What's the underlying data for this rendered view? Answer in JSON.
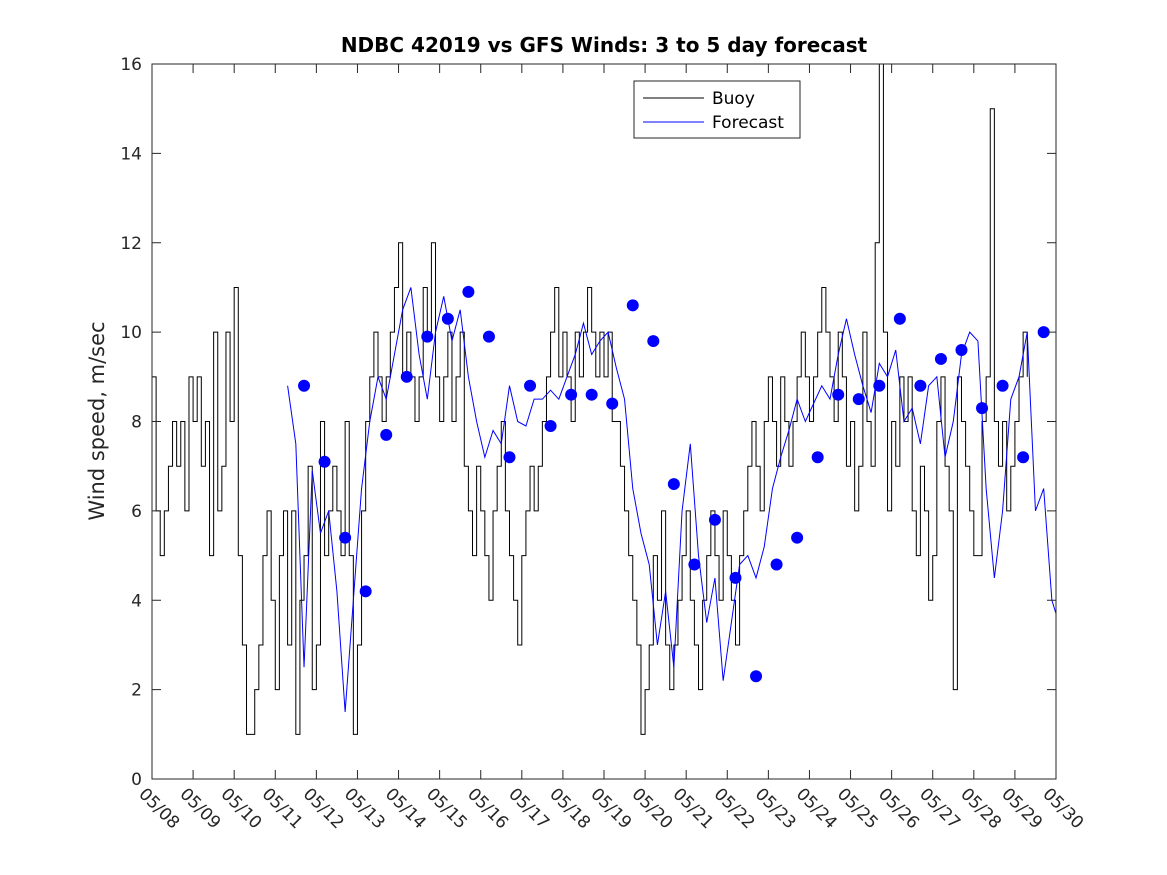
{
  "chart_data": {
    "type": "line",
    "title": "NDBC 42019 vs GFS Winds: 3 to 5 day forecast",
    "xlabel": "",
    "ylabel": "Wind speed, m/sec",
    "xlim": [
      "05/08",
      "05/30"
    ],
    "ylim": [
      0,
      16
    ],
    "y_ticks": [
      0,
      2,
      4,
      6,
      8,
      10,
      12,
      14,
      16
    ],
    "x_ticks": [
      "05/08",
      "05/09",
      "05/10",
      "05/11",
      "05/12",
      "05/13",
      "05/14",
      "05/15",
      "05/16",
      "05/17",
      "05/18",
      "05/19",
      "05/20",
      "05/21",
      "05/22",
      "05/23",
      "05/24",
      "05/25",
      "05/26",
      "05/27",
      "05/28",
      "05/29",
      "05/30"
    ],
    "grid": false,
    "legend": {
      "placement": "top-center",
      "entries": [
        "Buoy",
        "Forecast"
      ]
    },
    "colors": {
      "Buoy": "#000000",
      "Forecast": "#0000ff",
      "markers": "#0000ff"
    },
    "series": [
      {
        "name": "Buoy",
        "x_day_fraction": [
          0.0,
          0.1,
          0.2,
          0.3,
          0.4,
          0.5,
          0.6,
          0.7,
          0.8,
          0.9,
          1.0,
          1.1,
          1.2,
          1.3,
          1.4,
          1.5,
          1.6,
          1.7,
          1.8,
          1.9,
          2.0,
          2.1,
          2.2,
          2.3,
          2.4,
          2.5,
          2.6,
          2.7,
          2.8,
          2.9,
          3.0,
          3.1,
          3.2,
          3.3,
          3.4,
          3.5,
          3.6,
          3.7,
          3.8,
          3.9,
          4.0,
          4.1,
          4.2,
          4.3,
          4.4,
          4.5,
          4.6,
          4.7,
          4.8,
          4.9,
          5.0,
          5.1,
          5.2,
          5.3,
          5.4,
          5.5,
          5.6,
          5.7,
          5.8,
          5.9,
          6.0,
          6.1,
          6.2,
          6.3,
          6.4,
          6.5,
          6.6,
          6.7,
          6.8,
          6.9,
          7.0,
          7.1,
          7.2,
          7.3,
          7.4,
          7.5,
          7.6,
          7.7,
          7.8,
          7.9,
          8.0,
          8.1,
          8.2,
          8.3,
          8.4,
          8.5,
          8.6,
          8.7,
          8.8,
          8.9,
          9.0,
          9.1,
          9.2,
          9.3,
          9.4,
          9.5,
          9.6,
          9.7,
          9.8,
          9.9,
          10.0,
          10.1,
          10.2,
          10.3,
          10.4,
          10.5,
          10.6,
          10.7,
          10.8,
          10.9,
          11.0,
          11.1,
          11.2,
          11.3,
          11.4,
          11.5,
          11.6,
          11.7,
          11.8,
          11.9,
          12.0,
          12.1,
          12.2,
          12.3,
          12.4,
          12.5,
          12.6,
          12.7,
          12.8,
          12.9,
          13.0,
          13.1,
          13.2,
          13.3,
          13.4,
          13.5,
          13.6,
          13.7,
          13.8,
          13.9,
          14.0,
          14.1,
          14.2,
          14.3,
          14.4,
          14.5,
          14.6,
          14.7,
          14.8,
          14.9,
          15.0,
          15.1,
          15.2,
          15.3,
          15.4,
          15.5,
          15.6,
          15.7,
          15.8,
          15.9,
          16.0,
          16.1,
          16.2,
          16.3,
          16.4,
          16.5,
          16.6,
          16.7,
          16.8,
          16.9,
          17.0,
          17.1,
          17.2,
          17.3,
          17.4,
          17.5,
          17.6,
          17.7,
          17.8,
          17.9,
          18.0,
          18.1,
          18.2,
          18.3,
          18.4,
          18.5,
          18.6,
          18.7,
          18.8,
          18.9,
          19.0,
          19.1,
          19.2,
          19.3,
          19.4,
          19.5,
          19.6,
          19.7,
          19.8,
          19.9,
          20.0,
          20.1,
          20.2,
          20.3,
          20.4,
          20.5,
          20.6,
          20.7,
          20.8,
          20.9,
          21.0,
          21.1,
          21.2,
          21.3
        ],
        "values": [
          9,
          6,
          5,
          6,
          7,
          8,
          7,
          8,
          6,
          9,
          8,
          9,
          7,
          8,
          5,
          10,
          6,
          7,
          10,
          8,
          11,
          5,
          3,
          1,
          1,
          2,
          3,
          5,
          6,
          4,
          2,
          5,
          6,
          3,
          6,
          1,
          4,
          5,
          7,
          2,
          3,
          8,
          5,
          6,
          7,
          6,
          5,
          8,
          5,
          1,
          3,
          6,
          8,
          9,
          10,
          9,
          8,
          9,
          10,
          11,
          12,
          9,
          10,
          9,
          8,
          9,
          11,
          10,
          12,
          9,
          8,
          9,
          10,
          8,
          9,
          10,
          7,
          6,
          5,
          7,
          6,
          5,
          4,
          6,
          7,
          8,
          6,
          5,
          4,
          3,
          5,
          6,
          7,
          6,
          7,
          8,
          9,
          10,
          11,
          9,
          10,
          9,
          8,
          10,
          9,
          10,
          11,
          10,
          9,
          10,
          9,
          10,
          8,
          8,
          7,
          6,
          5,
          4,
          3,
          1,
          2,
          3,
          5,
          4,
          6,
          3,
          2,
          3,
          4,
          5,
          6,
          4,
          3,
          2,
          4,
          5,
          6,
          5,
          4,
          6,
          5,
          4,
          3,
          5,
          6,
          7,
          8,
          7,
          6,
          8,
          9,
          8,
          7,
          9,
          8,
          7,
          8,
          9,
          10,
          9,
          8,
          9,
          10,
          11,
          10,
          9,
          8,
          10,
          9,
          7,
          8,
          6,
          7,
          10,
          8,
          7,
          12,
          16,
          10,
          6,
          8,
          7,
          9,
          8,
          9,
          6,
          5,
          7,
          6,
          4,
          5,
          8,
          9,
          7,
          6,
          2,
          9,
          8,
          7,
          6,
          5,
          5,
          8,
          9,
          15,
          8,
          7,
          8,
          6,
          7,
          8,
          9,
          10,
          9
        ]
      },
      {
        "name": "Forecast",
        "x_day_fraction": [
          3.3,
          3.5,
          3.7,
          3.9,
          4.1,
          4.3,
          4.5,
          4.7,
          4.9,
          5.1,
          5.3,
          5.5,
          5.7,
          5.9,
          6.1,
          6.3,
          6.5,
          6.7,
          6.9,
          7.1,
          7.3,
          7.5,
          7.7,
          7.9,
          8.1,
          8.3,
          8.5,
          8.7,
          8.9,
          9.1,
          9.3,
          9.5,
          9.7,
          9.9,
          10.1,
          10.3,
          10.5,
          10.7,
          10.9,
          11.1,
          11.3,
          11.5,
          11.7,
          11.9,
          12.1,
          12.3,
          12.5,
          12.7,
          12.9,
          13.1,
          13.3,
          13.5,
          13.7,
          13.9,
          14.1,
          14.3,
          14.5,
          14.7,
          14.9,
          15.1,
          15.3,
          15.5,
          15.7,
          15.9,
          16.1,
          16.3,
          16.5,
          16.7,
          16.9,
          17.1,
          17.3,
          17.5,
          17.7,
          17.9,
          18.1,
          18.3,
          18.5,
          18.7,
          18.9,
          19.1,
          19.3,
          19.5,
          19.7,
          19.9,
          20.1,
          20.3,
          20.5,
          20.7,
          20.9,
          21.1,
          21.3,
          21.5,
          21.7,
          21.9,
          22.0
        ],
        "values": [
          8.8,
          7.5,
          2.5,
          6.9,
          5.5,
          6.0,
          4.2,
          1.5,
          4.0,
          6.5,
          8.0,
          9.0,
          8.5,
          9.5,
          10.5,
          11.0,
          9.5,
          8.5,
          10.0,
          10.8,
          9.8,
          10.5,
          9.0,
          8.0,
          7.2,
          7.8,
          7.5,
          8.8,
          8.0,
          7.9,
          8.5,
          8.5,
          8.7,
          8.5,
          9.0,
          9.5,
          10.2,
          9.5,
          9.8,
          10.0,
          9.2,
          8.5,
          6.5,
          5.5,
          4.8,
          3.0,
          4.2,
          2.5,
          6.0,
          7.5,
          5.0,
          3.5,
          4.5,
          2.2,
          3.5,
          4.8,
          5.0,
          4.5,
          5.2,
          6.5,
          7.2,
          7.8,
          8.5,
          8.0,
          8.4,
          8.8,
          8.5,
          9.5,
          10.3,
          9.5,
          8.8,
          8.2,
          9.3,
          9.0,
          9.6,
          8.0,
          8.3,
          7.5,
          8.8,
          9.0,
          7.2,
          8.0,
          9.5,
          10.0,
          9.8,
          6.5,
          4.5,
          6.0,
          8.5,
          9.0,
          10.0,
          6.0,
          6.5,
          4.0,
          3.7
        ]
      },
      {
        "name": "",
        "kind": "markers",
        "x_day_fraction": [
          3.7,
          4.2,
          4.7,
          5.2,
          5.7,
          6.2,
          6.7,
          7.2,
          7.7,
          8.2,
          8.7,
          9.2,
          9.7,
          10.2,
          10.7,
          11.2,
          11.7,
          12.2,
          12.7,
          13.2,
          13.7,
          14.2,
          14.7,
          15.2,
          15.7,
          16.2,
          16.7,
          17.2,
          17.7,
          18.2,
          18.7,
          19.2,
          19.7,
          20.2,
          20.7,
          21.2,
          21.7
        ],
        "values": [
          8.8,
          7.1,
          5.4,
          4.2,
          7.7,
          9.0,
          9.9,
          10.3,
          10.9,
          9.9,
          7.2,
          8.8,
          7.9,
          8.6,
          8.6,
          8.4,
          10.6,
          9.8,
          6.6,
          4.8,
          5.8,
          4.5,
          2.3,
          4.8,
          5.4,
          7.2,
          8.6,
          8.5,
          8.8,
          10.3,
          8.8,
          9.4,
          9.6,
          8.3,
          8.8,
          7.2,
          10.0
        ]
      }
    ]
  }
}
